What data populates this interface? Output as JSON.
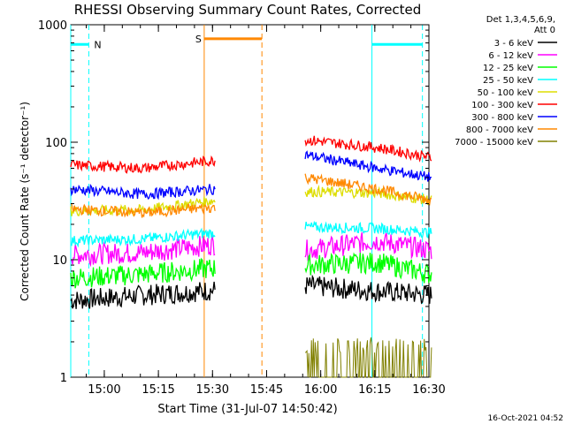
{
  "chart_data": {
    "type": "line",
    "title": "RHESSI Observing Summary Count Rates, Corrected",
    "xlabel": "Start Time (31-Jul-07 14:50:42)",
    "ylabel": "Corrected Count Rate (s⁻¹ detector⁻¹)",
    "yscale": "log",
    "ylim": [
      1,
      1000
    ],
    "xlim_minutes_after_start": [
      0,
      99.3
    ],
    "x_ticks": [
      "15:00",
      "15:15",
      "15:30",
      "15:45",
      "16:00",
      "16:15",
      "16:30"
    ],
    "x_tick_minutes": [
      9.3,
      24.3,
      39.3,
      54.3,
      69.3,
      84.3,
      99.3
    ],
    "y_ticks": [
      "1",
      "10",
      "100",
      "1000"
    ],
    "y_tick_values": [
      1,
      10,
      100,
      1000
    ],
    "legend": {
      "header": [
        "Det 1,3,4,5,6,9,",
        "Att 0"
      ],
      "placement": "right",
      "entries": [
        {
          "name": "3 - 6 keV",
          "color": "#000000"
        },
        {
          "name": "6 - 12 keV",
          "color": "#ff00ff"
        },
        {
          "name": "12 - 25 keV",
          "color": "#00ff00"
        },
        {
          "name": "25 - 50 keV",
          "color": "#00ffff"
        },
        {
          "name": "50 - 100 keV",
          "color": "#dddd00"
        },
        {
          "name": "100 - 300 keV",
          "color": "#ff0000"
        },
        {
          "name": "300 - 800 keV",
          "color": "#0000ff"
        },
        {
          "name": "800 - 7000 keV",
          "color": "#ff8800"
        },
        {
          "name": "7000 - 15000 keV",
          "color": "#808000"
        }
      ]
    },
    "markers": {
      "night_label": "N",
      "saa_label": "S",
      "night_color": "#00ffff",
      "saa_color": "#ff8800"
    },
    "series": [
      {
        "name": "3 - 6 keV",
        "color": "#000000",
        "segments": [
          {
            "t": [
              0,
              40
            ],
            "y": [
              4.5,
              5.5
            ]
          },
          {
            "t": [
              65,
              100
            ],
            "y": [
              6,
              5
            ]
          }
        ]
      },
      {
        "name": "6 - 12 keV",
        "color": "#ff00ff",
        "segments": [
          {
            "t": [
              0,
              20,
              40
            ],
            "y": [
              11,
              11.5,
              13.5
            ]
          },
          {
            "t": [
              65,
              85,
              100
            ],
            "y": [
              12,
              14.5,
              12
            ]
          }
        ]
      },
      {
        "name": "12 - 25 keV",
        "color": "#00ff00",
        "segments": [
          {
            "t": [
              0,
              20,
              40
            ],
            "y": [
              7,
              7.5,
              8.5
            ]
          },
          {
            "t": [
              65,
              85,
              100
            ],
            "y": [
              9,
              9.5,
              7.5
            ]
          }
        ]
      },
      {
        "name": "25 - 50 keV",
        "color": "#00ffff",
        "segments": [
          {
            "t": [
              0,
              20,
              40
            ],
            "y": [
              14.5,
              15,
              17
            ]
          },
          {
            "t": [
              65,
              85,
              100
            ],
            "y": [
              19,
              18.5,
              17
            ]
          }
        ]
      },
      {
        "name": "50 - 100 keV",
        "color": "#dddd00",
        "segments": [
          {
            "t": [
              0,
              20,
              40
            ],
            "y": [
              26,
              26.5,
              32
            ]
          },
          {
            "t": [
              65,
              85,
              100
            ],
            "y": [
              38,
              37,
              32
            ]
          }
        ]
      },
      {
        "name": "100 - 300 keV",
        "color": "#ff0000",
        "segments": [
          {
            "t": [
              0,
              20,
              40
            ],
            "y": [
              64,
              60,
              70
            ]
          },
          {
            "t": [
              65,
              85,
              100
            ],
            "y": [
              105,
              90,
              74
            ]
          }
        ]
      },
      {
        "name": "300 - 800 keV",
        "color": "#0000ff",
        "segments": [
          {
            "t": [
              0,
              20,
              40
            ],
            "y": [
              40,
              36,
              40
            ]
          },
          {
            "t": [
              65,
              85,
              100
            ],
            "y": [
              78,
              60,
              50
            ]
          }
        ]
      },
      {
        "name": "800 - 7000 keV",
        "color": "#ff8800",
        "segments": [
          {
            "t": [
              0,
              20,
              40
            ],
            "y": [
              27,
              25,
              28
            ]
          },
          {
            "t": [
              65,
              85,
              100
            ],
            "y": [
              50,
              40,
              32
            ]
          }
        ]
      },
      {
        "name": "7000 - 15000 keV",
        "color": "#808000",
        "segments": [
          {
            "t": [
              65,
              100
            ],
            "y": [
              1,
              1
            ]
          }
        ]
      }
    ]
  },
  "timestamp": "16-Oct-2021 04:52"
}
